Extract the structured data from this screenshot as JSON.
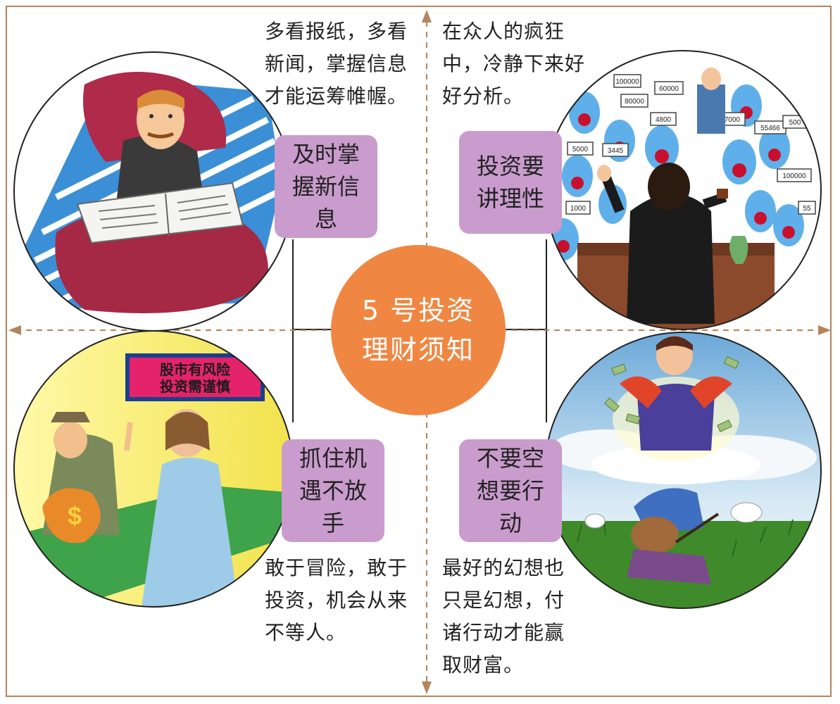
{
  "center_title": "5 号投资理财须知",
  "tips": [
    {
      "tag": "及时掌握新信息",
      "note": "多看报纸，多看新闻，掌握信息才能运筹帷幄。"
    },
    {
      "tag": "投资要讲理性",
      "note": "在众人的疯狂中，冷静下来好好分析。"
    },
    {
      "tag": "抓住机遇不放手",
      "note": "敢于冒险，敢于投资，机会从来不等人。"
    },
    {
      "tag": "不要空想要行动",
      "note": "最好的幻想也只是幻想，付诸行动才能赢取财富。"
    }
  ],
  "illustration_labels": {
    "auction_bids": [
      "100000",
      "60000",
      "80000",
      "4800",
      "7000",
      "55466",
      "500",
      "5000",
      "3445",
      "100000",
      "1000",
      "55"
    ],
    "warning_sign": [
      "股市有风险",
      "投资需谨慎"
    ],
    "bag_symbol": "$"
  },
  "colors": {
    "center_circle": "#ef8743",
    "tag_box": "#c99ccd",
    "axis": "#b5835c",
    "frame": "#b5835c"
  }
}
